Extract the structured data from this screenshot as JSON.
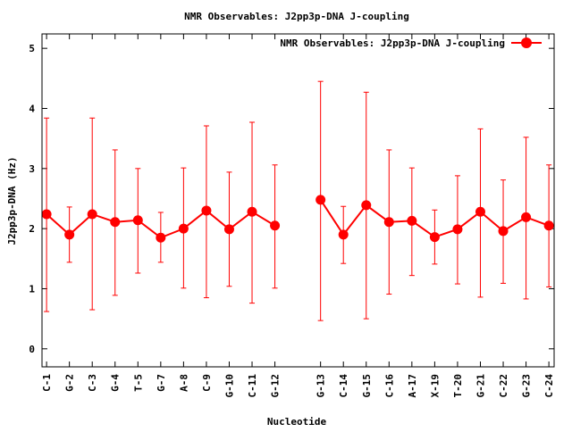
{
  "chart_data": {
    "type": "line",
    "title": "NMR Observables: J2pp3p-DNA J-coupling",
    "xlabel": "Nucleotide",
    "ylabel": "J2pp3p-DNA (Hz)",
    "ylim": [
      -0.3,
      5.24
    ],
    "xlim": [
      0.8,
      23.23
    ],
    "yticks": [
      0,
      1,
      2,
      3,
      4,
      5
    ],
    "grid": false,
    "legend_position": "top-right",
    "color": "#ff0000",
    "series": [
      {
        "name": "NMR Observables: J2pp3p-DNA J-coupling",
        "points": [
          {
            "x": 1,
            "label": "C-1",
            "y": 2.24,
            "lo": 0.62,
            "hi": 3.84
          },
          {
            "x": 2,
            "label": "G-2",
            "y": 1.9,
            "lo": 1.44,
            "hi": 2.36
          },
          {
            "x": 3,
            "label": "C-3",
            "y": 2.24,
            "lo": 0.65,
            "hi": 3.84
          },
          {
            "x": 4,
            "label": "G-4",
            "y": 2.11,
            "lo": 0.89,
            "hi": 3.31
          },
          {
            "x": 5,
            "label": "T-5",
            "y": 2.14,
            "lo": 1.26,
            "hi": 3.0
          },
          {
            "x": 6,
            "label": "G-7",
            "y": 1.85,
            "lo": 1.44,
            "hi": 2.27
          },
          {
            "x": 7,
            "label": "A-8",
            "y": 2.0,
            "lo": 1.01,
            "hi": 3.01
          },
          {
            "x": 8,
            "label": "C-9",
            "y": 2.3,
            "lo": 0.85,
            "hi": 3.71
          },
          {
            "x": 9,
            "label": "G-10",
            "y": 1.99,
            "lo": 1.04,
            "hi": 2.94
          },
          {
            "x": 10,
            "label": "C-11",
            "y": 2.28,
            "lo": 0.76,
            "hi": 3.77
          },
          {
            "x": 11,
            "label": "G-12",
            "y": 2.05,
            "lo": 1.01,
            "hi": 3.06
          },
          {
            "x": 13,
            "label": "G-13",
            "y": 2.48,
            "lo": 0.47,
            "hi": 4.45,
            "break_before": true
          },
          {
            "x": 14,
            "label": "C-14",
            "y": 1.9,
            "lo": 1.42,
            "hi": 2.37
          },
          {
            "x": 15,
            "label": "G-15",
            "y": 2.39,
            "lo": 0.5,
            "hi": 4.27
          },
          {
            "x": 16,
            "label": "C-16",
            "y": 2.11,
            "lo": 0.91,
            "hi": 3.31
          },
          {
            "x": 17,
            "label": "A-17",
            "y": 2.13,
            "lo": 1.22,
            "hi": 3.01
          },
          {
            "x": 18,
            "label": "X-19",
            "y": 1.86,
            "lo": 1.41,
            "hi": 2.31
          },
          {
            "x": 19,
            "label": "T-20",
            "y": 1.99,
            "lo": 1.08,
            "hi": 2.88
          },
          {
            "x": 20,
            "label": "G-21",
            "y": 2.28,
            "lo": 0.86,
            "hi": 3.66
          },
          {
            "x": 21,
            "label": "C-22",
            "y": 1.96,
            "lo": 1.09,
            "hi": 2.81
          },
          {
            "x": 22,
            "label": "G-23",
            "y": 2.19,
            "lo": 0.83,
            "hi": 3.52
          },
          {
            "x": 23,
            "label": "C-24",
            "y": 2.05,
            "lo": 1.03,
            "hi": 3.06
          }
        ]
      }
    ]
  }
}
